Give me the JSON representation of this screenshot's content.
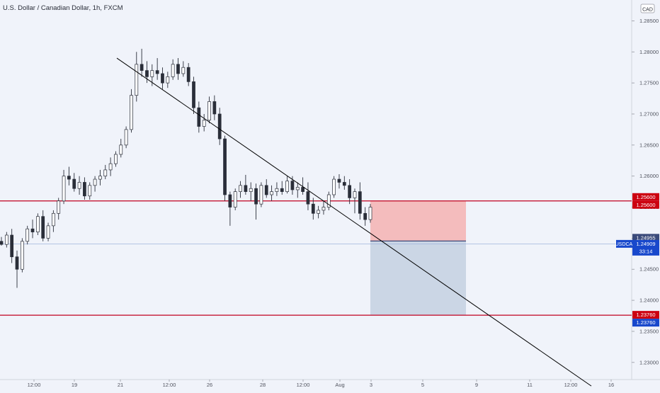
{
  "header": {
    "symbol_title": "U.S. Dollar / Canadian Dollar, 1h, FXCM"
  },
  "currency_badge": "CAD",
  "price_labels": {
    "resistance_top": "1.25600",
    "resistance_bottom": "1.25600",
    "entry": "1.24955",
    "symbol_tag": "USDCAD",
    "current_price": "1.24909",
    "countdown": "33:14",
    "support_top": "1.23760",
    "support_bottom": "1.23760"
  },
  "colors": {
    "background": "#f0f3fa",
    "candle": "#2a2e39",
    "trendline": "#000000",
    "horizontal_level": "#c0001e",
    "risk_zone": "#f4b6b6",
    "reward_zone": "#c8d4e4",
    "entry_line": "#3a4a7a",
    "price_tag": "#1848cc",
    "resistance_tag": "#cc0010"
  },
  "chart_data": {
    "type": "candlestick",
    "title": "U.S. Dollar / Canadian Dollar, 1h, FXCM",
    "ylim": [
      1.2265,
      1.2875
    ],
    "y_ticks": [
      "1.28500",
      "1.28000",
      "1.27500",
      "1.27000",
      "1.26500",
      "1.26000",
      "1.25500",
      "1.25000",
      "1.24500",
      "1.24000",
      "1.23500",
      "1.23000"
    ],
    "x_ticks": [
      "12:00",
      "19",
      "21",
      "12:00",
      "26",
      "28",
      "12:00",
      "Aug",
      "3",
      "5",
      "9",
      "11",
      "12:00",
      "16"
    ],
    "series": [
      {
        "values": [
          [
            1.2495,
            1.2502,
            1.2488,
            1.249
          ],
          [
            1.249,
            1.251,
            1.2485,
            1.2505
          ],
          [
            1.2505,
            1.2515,
            1.246,
            1.247
          ],
          [
            1.247,
            1.248,
            1.242,
            1.245
          ],
          [
            1.245,
            1.25,
            1.2445,
            1.2495
          ],
          [
            1.2495,
            1.252,
            1.249,
            1.2515
          ],
          [
            1.2515,
            1.253,
            1.25,
            1.251
          ],
          [
            1.251,
            1.254,
            1.2505,
            1.2535
          ],
          [
            1.2535,
            1.2545,
            1.2495,
            1.25
          ],
          [
            1.25,
            1.2525,
            1.2495,
            1.252
          ],
          [
            1.252,
            1.2545,
            1.251,
            1.254
          ],
          [
            1.254,
            1.2565,
            1.253,
            1.256
          ],
          [
            1.256,
            1.261,
            1.2555,
            1.26
          ],
          [
            1.26,
            1.2615,
            1.2585,
            1.2595
          ],
          [
            1.2595,
            1.2605,
            1.2575,
            1.258
          ],
          [
            1.258,
            1.26,
            1.257,
            1.259
          ],
          [
            1.259,
            1.2598,
            1.2562,
            1.2568
          ],
          [
            1.2568,
            1.259,
            1.2562,
            1.2585
          ],
          [
            1.2585,
            1.26,
            1.2575,
            1.2595
          ],
          [
            1.2595,
            1.261,
            1.2585,
            1.26
          ],
          [
            1.26,
            1.2618,
            1.2595,
            1.261
          ],
          [
            1.261,
            1.263,
            1.26,
            1.262
          ],
          [
            1.262,
            1.264,
            1.2615,
            1.2635
          ],
          [
            1.2635,
            1.266,
            1.263,
            1.265
          ],
          [
            1.265,
            1.268,
            1.2645,
            1.2675
          ],
          [
            1.2675,
            1.274,
            1.267,
            1.273
          ],
          [
            1.273,
            1.28,
            1.272,
            1.278
          ],
          [
            1.278,
            1.2805,
            1.276,
            1.277
          ],
          [
            1.277,
            1.2785,
            1.275,
            1.276
          ],
          [
            1.276,
            1.278,
            1.2745,
            1.277
          ],
          [
            1.277,
            1.279,
            1.2755,
            1.2765
          ],
          [
            1.2765,
            1.2775,
            1.274,
            1.275
          ],
          [
            1.275,
            1.2768,
            1.2742,
            1.276
          ],
          [
            1.276,
            1.2788,
            1.2755,
            1.278
          ],
          [
            1.278,
            1.279,
            1.2755,
            1.2765
          ],
          [
            1.2765,
            1.2785,
            1.276,
            1.2775
          ],
          [
            1.2775,
            1.2782,
            1.2745,
            1.2752
          ],
          [
            1.2752,
            1.276,
            1.27,
            1.271
          ],
          [
            1.271,
            1.272,
            1.267,
            1.268
          ],
          [
            1.268,
            1.27,
            1.2672,
            1.269
          ],
          [
            1.269,
            1.2728,
            1.2685,
            1.272
          ],
          [
            1.272,
            1.273,
            1.269,
            1.27
          ],
          [
            1.27,
            1.271,
            1.265,
            1.266
          ],
          [
            1.266,
            1.2665,
            1.256,
            1.257
          ],
          [
            1.257,
            1.2575,
            1.252,
            1.255
          ],
          [
            1.255,
            1.258,
            1.2545,
            1.2575
          ],
          [
            1.2575,
            1.2592,
            1.2565,
            1.2585
          ],
          [
            1.2585,
            1.2602,
            1.257,
            1.2575
          ],
          [
            1.2575,
            1.259,
            1.256,
            1.258
          ],
          [
            1.258,
            1.2588,
            1.253,
            1.2555
          ],
          [
            1.2555,
            1.259,
            1.255,
            1.2585
          ],
          [
            1.2585,
            1.2595,
            1.2565,
            1.257
          ],
          [
            1.257,
            1.2585,
            1.256,
            1.2575
          ],
          [
            1.2575,
            1.259,
            1.2568,
            1.258
          ],
          [
            1.258,
            1.2592,
            1.257,
            1.2575
          ],
          [
            1.2575,
            1.26,
            1.2572,
            1.2592
          ],
          [
            1.2592,
            1.26,
            1.257,
            1.2578
          ],
          [
            1.2578,
            1.259,
            1.2565,
            1.2582
          ],
          [
            1.2582,
            1.2598,
            1.257,
            1.2575
          ],
          [
            1.2575,
            1.259,
            1.2545,
            1.2555
          ],
          [
            1.2555,
            1.2565,
            1.253,
            1.254
          ],
          [
            1.254,
            1.2552,
            1.2532,
            1.2545
          ],
          [
            1.2545,
            1.256,
            1.2538,
            1.255
          ],
          [
            1.255,
            1.2575,
            1.2545,
            1.257
          ],
          [
            1.257,
            1.26,
            1.2565,
            1.2595
          ],
          [
            1.2595,
            1.2603,
            1.258,
            1.259
          ],
          [
            1.259,
            1.26,
            1.2578,
            1.2585
          ],
          [
            1.2585,
            1.2595,
            1.2555,
            1.2565
          ],
          [
            1.2565,
            1.258,
            1.254,
            1.2575
          ],
          [
            1.2575,
            1.259,
            1.253,
            1.254
          ],
          [
            1.254,
            1.255,
            1.252,
            1.253
          ],
          [
            1.253,
            1.2555,
            1.2525,
            1.255
          ]
        ]
      }
    ],
    "horizontal_levels": [
      1.256,
      1.2376
    ],
    "entry_level": 1.24955,
    "current_price": 1.24909,
    "position": {
      "entry": 1.24955,
      "stop": 1.256,
      "target": 1.2376
    },
    "trendline": {
      "from_price": 1.279,
      "to_price": 1.2262
    }
  }
}
